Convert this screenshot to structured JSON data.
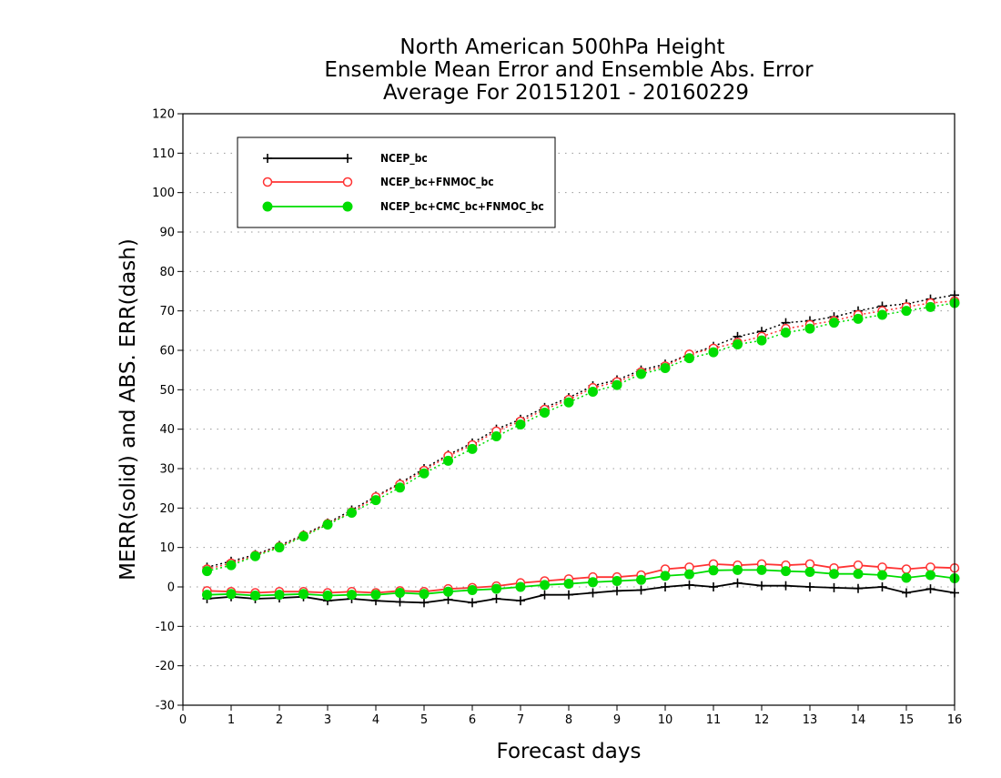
{
  "chart_data": {
    "type": "line",
    "title": [
      "North American 500hPa Height",
      "Ensemble Mean Error and Ensemble Abs. Error",
      "Average For 20151201 - 20160229"
    ],
    "xlabel": "Forecast days",
    "ylabel": "MERR(solid) and ABS. ERR(dash)",
    "xlim": [
      0,
      16
    ],
    "ylim": [
      -30,
      120
    ],
    "x_ticks": [
      0,
      1,
      2,
      3,
      4,
      5,
      6,
      7,
      8,
      9,
      10,
      11,
      12,
      13,
      14,
      15,
      16
    ],
    "y_ticks": [
      -30,
      -20,
      -10,
      0,
      10,
      20,
      30,
      40,
      50,
      60,
      70,
      80,
      90,
      100,
      110,
      120
    ],
    "grid": "horizontal-dotted",
    "legend_position": "top-left",
    "x": [
      0.5,
      1,
      1.5,
      2,
      2.5,
      3,
      3.5,
      4,
      4.5,
      5,
      5.5,
      6,
      6.5,
      7,
      7.5,
      8,
      8.5,
      9,
      9.5,
      10,
      10.5,
      11,
      11.5,
      12,
      12.5,
      13,
      13.5,
      14,
      14.5,
      15,
      15.5,
      16
    ],
    "series": [
      {
        "name": "NCEP_bc",
        "color": "#000000",
        "marker": "plus",
        "merr": [
          -3,
          -2.5,
          -3,
          -2.8,
          -2.5,
          -3.5,
          -3,
          -3.5,
          -3.8,
          -4,
          -3.2,
          -4,
          -3,
          -3.5,
          -2,
          -2,
          -1.5,
          -1,
          -0.8,
          0,
          0.5,
          0,
          1,
          0.3,
          0.3,
          0,
          -0.2,
          -0.4,
          0,
          -1.5,
          -0.5,
          -1.5
        ],
        "abs_err": [
          5,
          6.5,
          8.2,
          10.5,
          13.2,
          16.2,
          19.5,
          23,
          26.3,
          30,
          33.5,
          36.5,
          40,
          42.5,
          45.5,
          48,
          51,
          52.5,
          55,
          56.5,
          59,
          61,
          63.5,
          64.8,
          67,
          67.5,
          68.5,
          70,
          71.2,
          71.8,
          73,
          74
        ]
      },
      {
        "name": "NCEP_bc+FNMOC_bc",
        "color": "#ff3333",
        "marker": "open-circle",
        "merr": [
          -1,
          -1.2,
          -1.5,
          -1.2,
          -1.2,
          -1.5,
          -1.2,
          -1.5,
          -1,
          -1.2,
          -0.5,
          -0.2,
          0.2,
          1,
          1.5,
          2,
          2.5,
          2.5,
          3,
          4.5,
          5,
          5.8,
          5.5,
          5.8,
          5.5,
          5.8,
          4.8,
          5.5,
          5,
          4.5,
          5,
          4.8
        ],
        "abs_err": [
          4.5,
          6,
          8,
          10.2,
          13,
          16,
          19,
          22.8,
          26,
          29.5,
          33.2,
          36,
          39.5,
          42,
          45,
          47.5,
          50.5,
          52,
          54.5,
          56,
          59,
          60.5,
          62,
          63.5,
          65.5,
          66.5,
          67.5,
          69,
          70,
          71,
          72,
          72.5
        ]
      },
      {
        "name": "NCEP_bc+CMC_bc+FNMOC_bc",
        "color": "#00dd00",
        "marker": "filled-circle",
        "merr": [
          -2,
          -1.8,
          -2.2,
          -2,
          -1.8,
          -2.2,
          -2,
          -2,
          -1.5,
          -1.8,
          -1.2,
          -0.8,
          -0.5,
          0,
          0.5,
          0.8,
          1.2,
          1.5,
          1.8,
          2.8,
          3.2,
          4.2,
          4.3,
          4.3,
          4,
          3.8,
          3.3,
          3.3,
          3,
          2.3,
          3,
          2.2
        ],
        "abs_err": [
          4,
          5.5,
          7.8,
          10,
          12.8,
          15.8,
          18.8,
          22,
          25.2,
          28.8,
          32,
          35,
          38.2,
          41.2,
          44.2,
          46.8,
          49.5,
          51.2,
          54,
          55.5,
          58,
          59.5,
          61.5,
          62.5,
          64.5,
          65.5,
          67,
          68,
          69,
          70,
          71,
          72
        ]
      }
    ]
  }
}
